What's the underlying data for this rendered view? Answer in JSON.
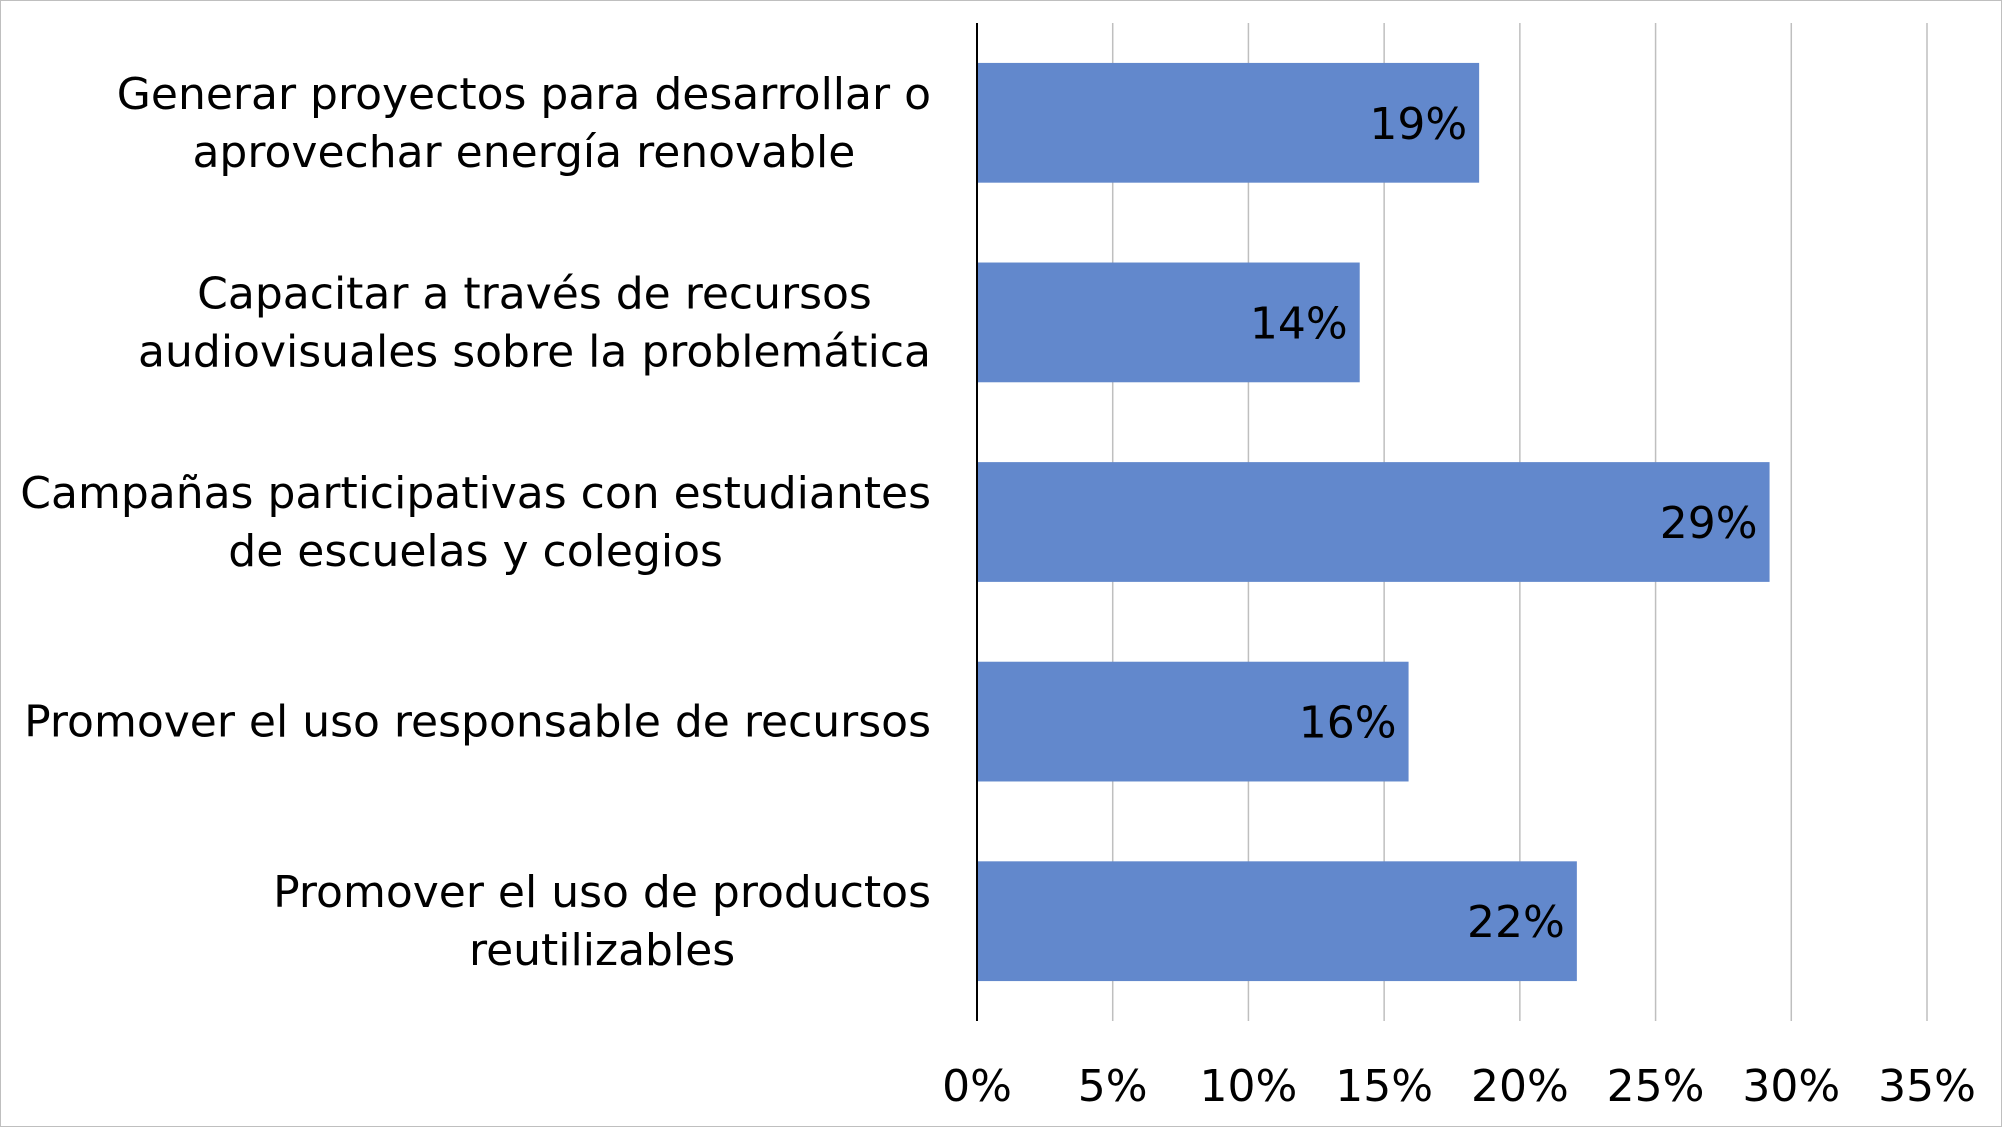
{
  "chart_data": {
    "type": "bar",
    "orientation": "horizontal",
    "categories": [
      [
        "Generar proyectos para desarrollar o",
        "aprovechar energía renovable"
      ],
      [
        "Capacitar a través de recursos",
        "audiovisuales sobre la problemática"
      ],
      [
        "Campañas participativas con estudiantes",
        "de escuelas y colegios"
      ],
      [
        "Promover el uso responsable de recursos"
      ],
      [
        "Promover el uso de productos",
        "reutilizables"
      ]
    ],
    "values": [
      18.5,
      14.1,
      29.2,
      15.9,
      22.1
    ],
    "data_labels": [
      "19%",
      "14%",
      "29%",
      "16%",
      "22%"
    ],
    "xlim": [
      0,
      35
    ],
    "x_ticks": [
      0,
      5,
      10,
      15,
      20,
      25,
      30,
      35
    ],
    "x_tick_labels": [
      "0%",
      "5%",
      "10%",
      "15%",
      "20%",
      "25%",
      "30%",
      "35%"
    ],
    "title": "",
    "xlabel": "",
    "ylabel": "",
    "grid": "vertical",
    "legend": "none",
    "bar_color": "#6288cc"
  }
}
